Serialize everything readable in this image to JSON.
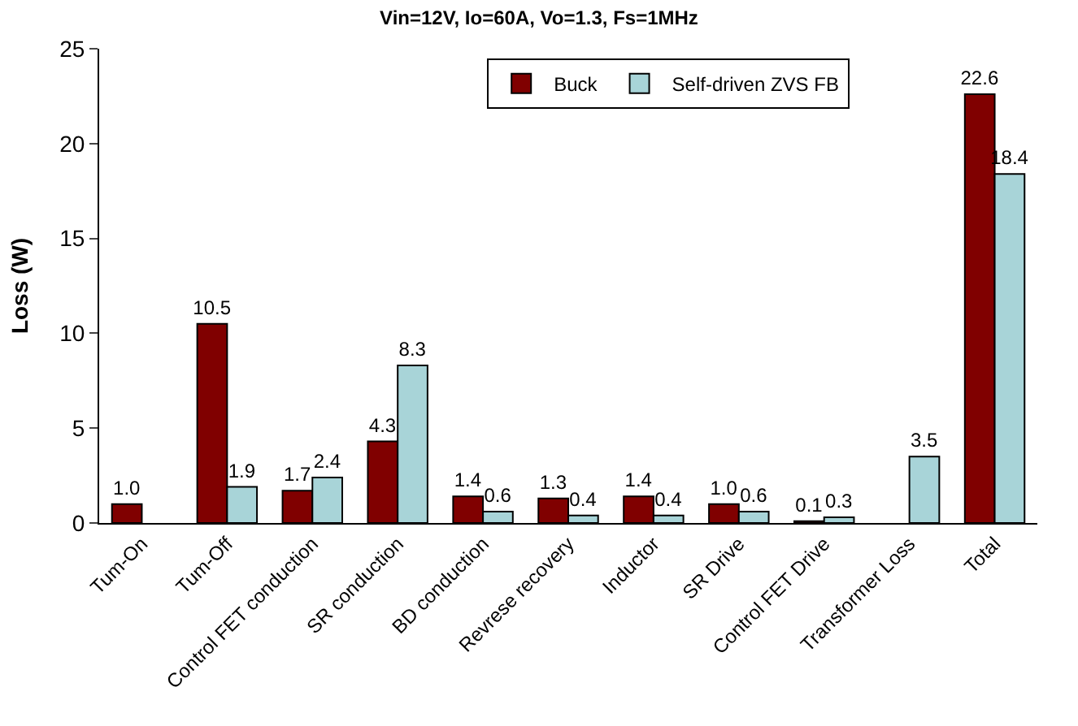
{
  "chart_data": {
    "type": "bar",
    "title": "Vin=12V, Io=60A, Vo=1.3, Fs=1MHz",
    "ylabel": "Loss (W)",
    "categories": [
      "Tum-On",
      "Tum-Off",
      "Control FET conduction",
      "SR conduction",
      "BD conduction",
      "Revrese recovery",
      "Inductor",
      "SR Drive",
      "Control FET Drive",
      "Transformer Loss",
      "Total"
    ],
    "series": [
      {
        "name": "Buck",
        "color": "#800000",
        "values": [
          1.0,
          10.5,
          1.7,
          4.3,
          1.4,
          1.3,
          1.4,
          1.0,
          0.1,
          null,
          22.6
        ],
        "value_labels": [
          "1.0",
          "10.5",
          "1.7",
          "4.3",
          "1.4",
          "1.3",
          "1.4",
          "1.0",
          "0.1",
          null,
          "22.6"
        ]
      },
      {
        "name": "Self-driven ZVS FB",
        "color": "#a8d4d8",
        "values": [
          null,
          1.9,
          2.4,
          8.3,
          0.6,
          0.4,
          0.4,
          0.6,
          0.3,
          3.5,
          18.4
        ],
        "value_labels": [
          null,
          "1.9",
          "2.4",
          "8.3",
          "0.6",
          "0.4",
          "0.4",
          "0.6",
          "0.3",
          "3.5",
          "18.4"
        ]
      }
    ],
    "ylim": [
      0,
      25
    ],
    "yticks": [
      0,
      5,
      10,
      15,
      20,
      25
    ],
    "legend": "top right"
  }
}
